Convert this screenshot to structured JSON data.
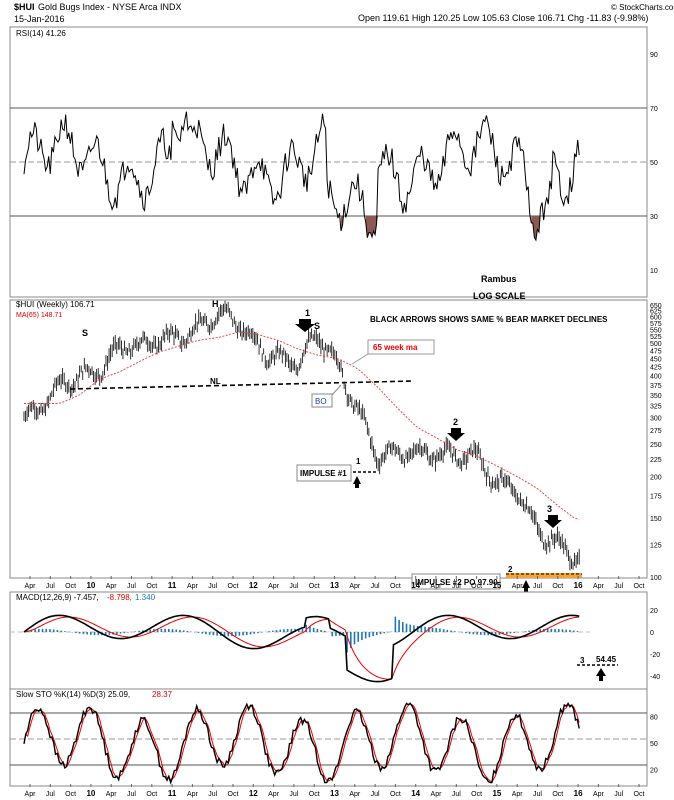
{
  "header": {
    "symbol": "$HUI",
    "name": "Gold Bugs Index - NYSE Arca INDX",
    "date": "15-Jan-2016",
    "ohlc": "Open 119.61  High 120.25  Low 105.63  Close 106.71  Chg -11.83 (-9.98%)",
    "watermark": "© StockCharts.com"
  },
  "panels": {
    "rsi": {
      "label": "RSI(14) 41.26",
      "ticks": [
        "90",
        "70",
        "50",
        "30",
        "10"
      ],
      "notes": [
        "Rambus",
        "LOG SCALE"
      ]
    },
    "price": {
      "label": "$HUI (Weekly) 106.71",
      "ma_label": "MA(65) 148.71",
      "ticks": [
        "650",
        "625",
        "600",
        "575",
        "550",
        "525",
        "500",
        "475",
        "450",
        "425",
        "400",
        "375",
        "350",
        "325",
        "300",
        "275",
        "250",
        "225",
        "200",
        "175",
        "150",
        "125",
        "100"
      ]
    },
    "macd": {
      "label": "MACD(12,26,9) -7.457,",
      "sig": "-8.798,",
      "hist": "1.340",
      "ticks": [
        "20",
        "0",
        "-20",
        "-40"
      ]
    },
    "sto": {
      "label": "Slow STO %K(14) %D(3) 25.09,",
      "d": "28.37",
      "ticks": [
        "80",
        "50",
        "20"
      ]
    }
  },
  "annotations": {
    "headline": "BLACK ARROWS SHOWS SAME % BEAR MARKET DECLINES",
    "ma_note": "65 week ma",
    "h": "H",
    "s_left": "S",
    "s_right": "S",
    "nl": "NL",
    "bo": "BO",
    "one_a": "1",
    "one_b": "1",
    "two": "2",
    "three_a": "3",
    "two_b": "2",
    "three_b": "3",
    "impulse1": "IMPULSE #1",
    "impulse2": "IMPULSE #2 PO 97.90",
    "po": "54.45"
  },
  "colors": {
    "price_bars": "#000000",
    "ma_line": "#ff0000",
    "macd_hist": "#1f77b4",
    "rsi_fill": "#8b5a52",
    "grid": "#888888"
  },
  "x_axis": [
    "Apr",
    "Jul",
    "Oct",
    "10",
    "Apr",
    "Jul",
    "Oct",
    "11",
    "Apr",
    "Jul",
    "Oct",
    "12",
    "Apr",
    "Jul",
    "Oct",
    "13",
    "Apr",
    "Jul",
    "Oct",
    "14",
    "Apr",
    "Jul",
    "Oct",
    "15",
    "Apr",
    "Jul",
    "Oct",
    "16",
    "Apr",
    "Jul",
    "Oct"
  ],
  "chart_data": {
    "type": "line",
    "title": "$HUI Gold Bugs Index - NYSE Arca INDX",
    "xlabel": "",
    "ylabel": "",
    "x": [
      2009.25,
      2009.5,
      2009.75,
      2010.0,
      2010.25,
      2010.5,
      2010.75,
      2011.0,
      2011.25,
      2011.5,
      2011.75,
      2012.0,
      2012.25,
      2012.5,
      2012.75,
      2013.0,
      2013.25,
      2013.5,
      2013.75,
      2014.0,
      2014.25,
      2014.5,
      2014.75,
      2015.0,
      2015.25,
      2015.5,
      2015.75,
      2016.0
    ],
    "series": [
      {
        "name": "$HUI",
        "values": [
          300,
          360,
          420,
          440,
          470,
          460,
          520,
          560,
          560,
          580,
          560,
          520,
          470,
          420,
          500,
          440,
          340,
          230,
          220,
          230,
          250,
          240,
          220,
          180,
          190,
          150,
          125,
          106.71
        ]
      },
      {
        "name": "MA(65)",
        "values": [
          330,
          330,
          350,
          390,
          410,
          440,
          470,
          490,
          510,
          520,
          540,
          530,
          510,
          480,
          460,
          450,
          420,
          370,
          320,
          280,
          260,
          240,
          230,
          215,
          200,
          185,
          165,
          148.71
        ]
      }
    ],
    "ylim": [
      100,
      650
    ],
    "scale": "log",
    "grid": false
  }
}
